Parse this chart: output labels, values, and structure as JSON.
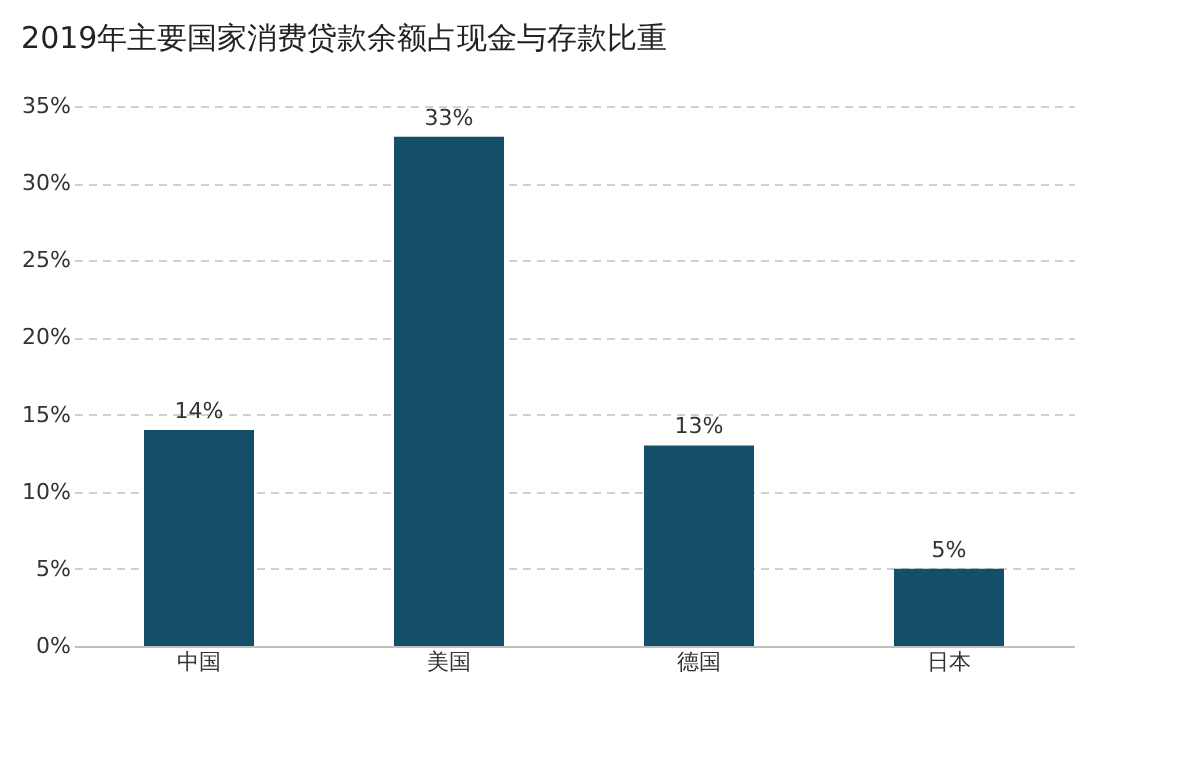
{
  "chart_data": {
    "type": "bar",
    "title": "2019年主要国家消费贷款余额占现金与存款比重",
    "categories": [
      "中国",
      "美国",
      "德国",
      "日本"
    ],
    "values": [
      14,
      33,
      13,
      5
    ],
    "value_labels": [
      "14%",
      "33%",
      "13%",
      "5%"
    ],
    "color": "#134f68",
    "ylim": [
      0,
      35
    ],
    "yticks": [
      {
        "value": 0,
        "label": "0%"
      },
      {
        "value": 5,
        "label": "5%"
      },
      {
        "value": 10,
        "label": "10%"
      },
      {
        "value": 15,
        "label": "15%"
      },
      {
        "value": 20,
        "label": "20%"
      },
      {
        "value": 25,
        "label": "25%"
      },
      {
        "value": 30,
        "label": "30%"
      },
      {
        "value": 35,
        "label": "35%"
      }
    ],
    "grid": "y"
  }
}
